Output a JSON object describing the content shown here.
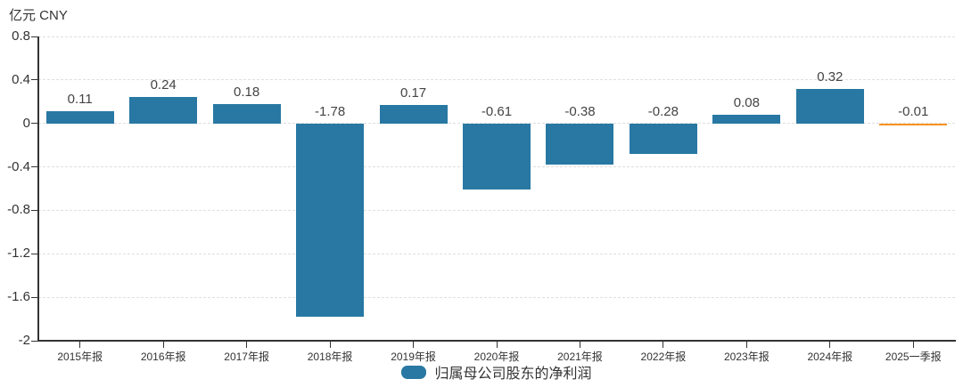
{
  "unit_label": "亿元 CNY",
  "legend": {
    "label": "归属母公司股东的净利润"
  },
  "colors": {
    "bar_blue": "#2878a3",
    "bar_orange": "#f79321",
    "grid": "#dfdfdf",
    "axis": "#333333",
    "value_label": "#444444",
    "tick_label": "#333333"
  },
  "chart_data": {
    "type": "bar",
    "title": "",
    "unit": "亿元 CNY",
    "categories": [
      "2015年报",
      "2016年报",
      "2017年报",
      "2018年报",
      "2019年报",
      "2020年报",
      "2021年报",
      "2022年报",
      "2023年报",
      "2024年报",
      "2025一季报"
    ],
    "series": [
      {
        "name": "归属母公司股东的净利润",
        "values": [
          0.11,
          0.24,
          0.18,
          -1.78,
          0.17,
          -0.61,
          -0.38,
          -0.28,
          0.08,
          0.32,
          -0.01
        ]
      }
    ],
    "value_labels": [
      "0.11",
      "0.24",
      "0.18",
      "-1.78",
      "0.17",
      "-0.61",
      "-0.38",
      "-0.28",
      "0.08",
      "0.32",
      "-0.01"
    ],
    "bar_colors": [
      "#2878a3",
      "#2878a3",
      "#2878a3",
      "#2878a3",
      "#2878a3",
      "#2878a3",
      "#2878a3",
      "#2878a3",
      "#2878a3",
      "#2878a3",
      "#f79321"
    ],
    "xlabel": "",
    "ylabel": "亿元 CNY",
    "ylim": [
      -2,
      0.8
    ],
    "yticks": [
      0.8,
      0.4,
      0,
      -0.4,
      -0.8,
      -1.2,
      -1.6,
      -2
    ],
    "ytick_labels": [
      "0.8",
      "0.4",
      "0",
      "-0.4",
      "-0.8",
      "-1.2",
      "-1.6",
      "-2"
    ],
    "grid": "dashed",
    "legend_position": "bottom"
  }
}
